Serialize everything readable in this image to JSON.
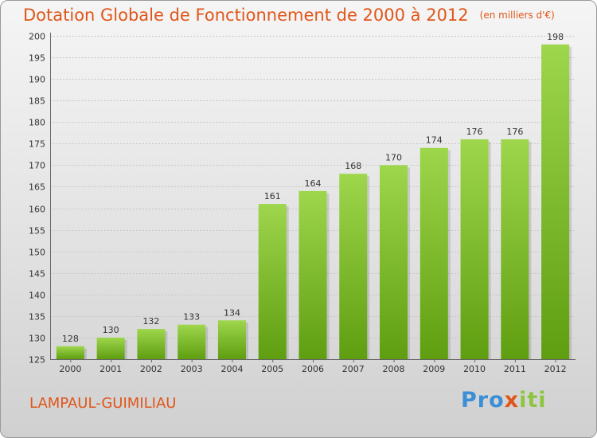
{
  "title": "Dotation Globale de Fonctionnement de 2000 à 2012",
  "subtitle": "(en milliers d'€)",
  "commune": "LAMPAUL-GUIMILIAU",
  "logo": {
    "part1": "Pro",
    "part2": "x",
    "part3": "iti"
  },
  "colors": {
    "title": "#e0561a",
    "bar_light": "#9ed64c",
    "bar_dark": "#5f9e10"
  },
  "chart_data": {
    "type": "bar",
    "title": "Dotation Globale de Fonctionnement de 2000 à 2012",
    "subtitle": "(en milliers d'€)",
    "xlabel": "",
    "ylabel": "",
    "categories": [
      "2000",
      "2001",
      "2002",
      "2003",
      "2004",
      "2005",
      "2006",
      "2007",
      "2008",
      "2009",
      "2010",
      "2011",
      "2012"
    ],
    "values": [
      128,
      130,
      132,
      133,
      134,
      161,
      164,
      168,
      170,
      174,
      176,
      176,
      198
    ],
    "ylim": [
      125,
      200
    ],
    "yticks": [
      125,
      130,
      135,
      140,
      145,
      150,
      155,
      160,
      165,
      170,
      175,
      180,
      185,
      190,
      195,
      200
    ],
    "grid": true
  }
}
